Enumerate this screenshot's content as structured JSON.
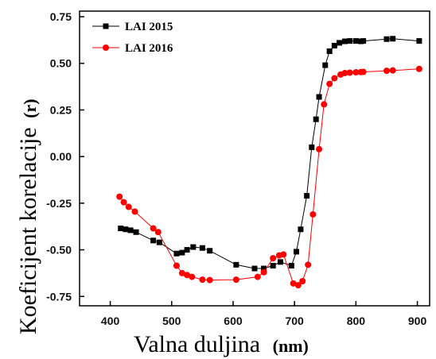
{
  "chart_data": {
    "type": "line",
    "xlabel": "Valna duljina",
    "xunit": "(nm)",
    "ylabel": "Koeficijent korelacije",
    "yunit": "(r)",
    "xlim": [
      350,
      920
    ],
    "ylim": [
      -0.8,
      0.78
    ],
    "xticks": [
      400,
      500,
      600,
      700,
      800,
      900
    ],
    "yticks": [
      -0.75,
      -0.5,
      -0.25,
      0.0,
      0.25,
      0.5,
      0.75
    ],
    "xtick_labels": [
      "400",
      "500",
      "600",
      "700",
      "800",
      "900"
    ],
    "ytick_labels": [
      "-0.75",
      "-0.50",
      "-0.25",
      "0.00",
      "0.25",
      "0.50",
      "0.75"
    ],
    "grid": false,
    "legend_position": "top-left",
    "series": [
      {
        "name": "LAI 2015",
        "color": "#000000",
        "marker": "square",
        "x": [
          417,
          425,
          433,
          442,
          470,
          480,
          508,
          517,
          525,
          535,
          550,
          562,
          605,
          635,
          650,
          665,
          677,
          695,
          703,
          710,
          720,
          728,
          735,
          740,
          750,
          757,
          765,
          773,
          782,
          790,
          800,
          808,
          812,
          850,
          860,
          903
        ],
        "y": [
          -0.385,
          -0.39,
          -0.395,
          -0.405,
          -0.45,
          -0.46,
          -0.52,
          -0.515,
          -0.5,
          -0.485,
          -0.49,
          -0.505,
          -0.58,
          -0.6,
          -0.6,
          -0.585,
          -0.565,
          -0.585,
          -0.51,
          -0.39,
          -0.21,
          0.05,
          0.2,
          0.32,
          0.49,
          0.565,
          0.595,
          0.61,
          0.618,
          0.62,
          0.62,
          0.618,
          0.62,
          0.63,
          0.632,
          0.62
        ]
      },
      {
        "name": "LAI 2016",
        "color": "#ff0000",
        "marker": "circle",
        "x": [
          415,
          422,
          430,
          440,
          470,
          478,
          508,
          517,
          525,
          533,
          550,
          562,
          605,
          640,
          650,
          665,
          675,
          682,
          698,
          706,
          713,
          722,
          730,
          740,
          748,
          757,
          765,
          775,
          782,
          790,
          800,
          808,
          812,
          850,
          860,
          903
        ],
        "y": [
          -0.215,
          -0.245,
          -0.27,
          -0.295,
          -0.385,
          -0.405,
          -0.585,
          -0.625,
          -0.635,
          -0.645,
          -0.66,
          -0.662,
          -0.66,
          -0.645,
          -0.62,
          -0.545,
          -0.53,
          -0.525,
          -0.68,
          -0.69,
          -0.668,
          -0.58,
          -0.31,
          0.04,
          0.28,
          0.39,
          0.42,
          0.44,
          0.448,
          0.45,
          0.452,
          0.453,
          0.454,
          0.46,
          0.462,
          0.47
        ]
      }
    ]
  }
}
